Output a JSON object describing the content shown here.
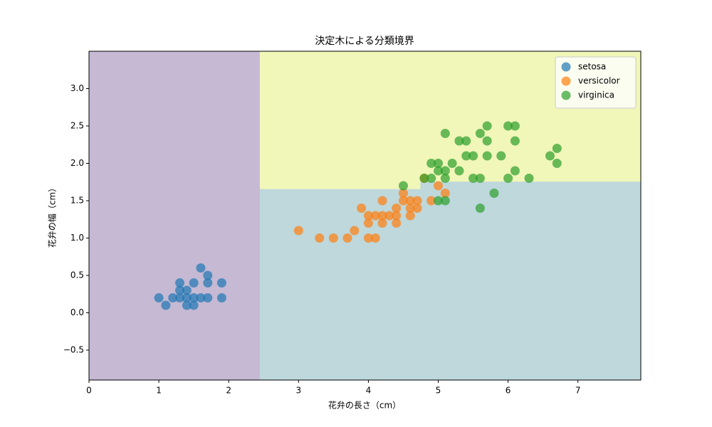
{
  "chart_data": {
    "type": "scatter",
    "title": "決定木による分類境界",
    "x_label": "花弁の長さ（cm）",
    "y_label": "花弁の幅（cm）",
    "xlim": [
      0,
      7.9
    ],
    "ylim": [
      -0.9,
      3.5
    ],
    "xticks": [
      0,
      1,
      2,
      3,
      4,
      5,
      6,
      7
    ],
    "yticks": [
      {
        "value": -0.5,
        "label": "−0.5"
      },
      {
        "value": 0,
        "label": "0.0"
      },
      {
        "value": 0.5,
        "label": "0.5"
      },
      {
        "value": 1,
        "label": "1.0"
      },
      {
        "value": 1.5,
        "label": "1.5"
      },
      {
        "value": 2,
        "label": "2.0"
      },
      {
        "value": 2.5,
        "label": "2.5"
      },
      {
        "value": 3,
        "label": "3.0"
      }
    ],
    "legend": "upper right",
    "regions": [
      {
        "color": "#c6b9d3",
        "x": [
          0,
          2.45,
          2.45,
          0
        ],
        "y": [
          -0.9,
          -0.9,
          3.5,
          3.5
        ]
      },
      {
        "color": "#f1f6b9",
        "x": [
          2.45,
          7.9,
          7.9,
          4.75,
          4.75,
          2.45
        ],
        "y": [
          3.5,
          3.5,
          1.75,
          1.75,
          1.65,
          1.65
        ]
      },
      {
        "color": "#bed8dc",
        "x": [
          2.45,
          4.75,
          4.75,
          7.9,
          7.9,
          2.45
        ],
        "y": [
          1.65,
          1.65,
          1.75,
          1.75,
          -0.9,
          -0.9
        ]
      }
    ],
    "series": [
      {
        "name": "setosa",
        "color": "#1f77b4",
        "x": [
          1.0,
          1.1,
          1.2,
          1.3,
          1.3,
          1.3,
          1.4,
          1.4,
          1.4,
          1.5,
          1.5,
          1.5,
          1.6,
          1.6,
          1.7,
          1.7,
          1.7,
          1.9,
          1.9
        ],
        "values": [
          0.2,
          0.1,
          0.2,
          0.2,
          0.3,
          0.4,
          0.1,
          0.2,
          0.3,
          0.1,
          0.2,
          0.4,
          0.2,
          0.6,
          0.2,
          0.4,
          0.5,
          0.2,
          0.4
        ]
      },
      {
        "name": "versicolor",
        "color": "#ff7f0e",
        "x": [
          3.0,
          3.3,
          3.5,
          3.7,
          3.8,
          3.9,
          4.0,
          4.0,
          4.0,
          4.1,
          4.1,
          4.2,
          4.2,
          4.2,
          4.3,
          4.4,
          4.4,
          4.4,
          4.5,
          4.5,
          4.6,
          4.6,
          4.6,
          4.7,
          4.7,
          4.8,
          4.9,
          5.0,
          5.1
        ],
        "values": [
          1.1,
          1.0,
          1.0,
          1.0,
          1.1,
          1.4,
          1.0,
          1.2,
          1.3,
          1.0,
          1.3,
          1.2,
          1.3,
          1.5,
          1.3,
          1.2,
          1.3,
          1.4,
          1.5,
          1.6,
          1.3,
          1.4,
          1.5,
          1.4,
          1.5,
          1.8,
          1.5,
          1.7,
          1.6
        ]
      },
      {
        "name": "virginica",
        "color": "#2ca02c",
        "x": [
          4.5,
          4.8,
          4.9,
          4.9,
          5.0,
          5.0,
          5.0,
          5.1,
          5.1,
          5.1,
          5.1,
          5.2,
          5.3,
          5.3,
          5.4,
          5.4,
          5.5,
          5.5,
          5.6,
          5.6,
          5.6,
          5.7,
          5.7,
          5.7,
          5.8,
          5.9,
          6.0,
          6.0,
          6.1,
          6.1,
          6.1,
          6.3,
          6.6,
          6.7,
          6.7
        ],
        "values": [
          1.7,
          1.8,
          1.8,
          2.0,
          1.5,
          1.9,
          2.0,
          1.5,
          1.8,
          1.9,
          2.4,
          2.0,
          1.9,
          2.3,
          2.1,
          2.3,
          1.8,
          2.1,
          1.4,
          1.8,
          2.4,
          2.1,
          2.3,
          2.5,
          1.6,
          2.1,
          1.8,
          2.5,
          1.9,
          2.3,
          2.5,
          1.8,
          2.1,
          2.0,
          2.2
        ]
      }
    ]
  }
}
